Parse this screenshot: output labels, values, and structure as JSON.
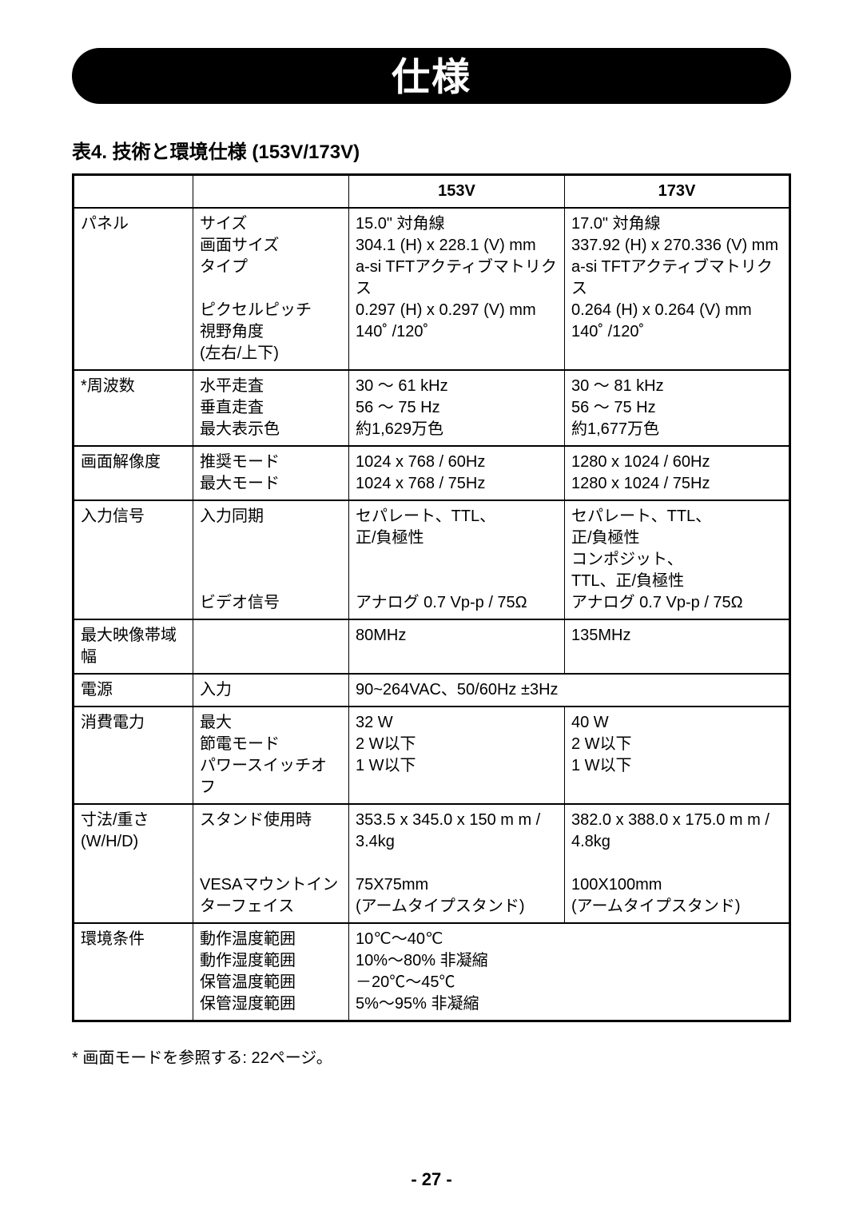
{
  "title": "仕様",
  "caption": "表4. 技術と環境仕様 (153V/173V)",
  "footnote": "* 画面モードを参照する: 22ページ。",
  "page_number": "- 27 -",
  "table": {
    "headers": [
      "",
      "",
      "153V",
      "173V"
    ],
    "rows": [
      {
        "c1": "パネル",
        "c2": "サイズ\n画面サイズ\nタイプ\n\nピクセルピッチ\n視野角度\n(左右/上下)",
        "c3": "15.0\" 対角線\n304.1 (H) x 228.1 (V) mm\na-si TFTアクティブマトリクス\n0.297 (H) x 0.297 (V) mm\n140˚ /120˚",
        "c4": "17.0\" 対角線\n337.92 (H) x 270.336 (V) mm\na-si TFTアクティブマトリクス\n0.264 (H) x 0.264 (V) mm\n140˚ /120˚"
      },
      {
        "c1": "*周波数",
        "c2": "水平走査\n垂直走査\n最大表示色",
        "c3": "30 ～ 61 kHz\n56 ～ 75 Hz\n約1,629万色",
        "c4": "30 ～ 81 kHz\n56 ～ 75 Hz\n約1,677万色"
      },
      {
        "c1": "画面解像度",
        "c2": "推奨モード\n最大モード",
        "c3": "1024 x 768 / 60Hz\n1024 x 768 / 75Hz",
        "c4": "1280 x 1024 / 60Hz\n1280 x 1024 / 75Hz"
      },
      {
        "c1": "入力信号",
        "c2": "入力同期\n\n\n\nビデオ信号",
        "c3": "セパレート、TTL、\n正/負極性\n\n\nアナログ 0.7 Vp-p / 75Ω",
        "c4": "セパレート、TTL、\n正/負極性\nコンポジット、\nTTL、正/負極性\nアナログ 0.7 Vp-p / 75Ω"
      },
      {
        "c1": "最大映像帯域幅",
        "c2": "",
        "c3": "80MHz",
        "c4": "135MHz"
      },
      {
        "c1": "電源",
        "c2": "入力",
        "span": "90~264VAC、50/60Hz ±3Hz"
      },
      {
        "c1": "消費電力",
        "c2": "最大\n節電モード\nパワースイッチオフ",
        "c3": "32 W\n2 W以下\n1 W以下",
        "c4": "40 W\n2 W以下\n1 W以下"
      },
      {
        "c1": "寸法/重さ\n(W/H/D)",
        "c2": "スタンド使用時\n\n\nVESAマウントインターフェイス",
        "c3": "353.5 x 345.0 x 150 m m /\n3.4kg\n\n75X75mm\n(アームタイプスタンド)",
        "c4": "382.0 x 388.0 x 175.0 m m /\n4.8kg\n\n100X100mm\n(アームタイプスタンド)"
      },
      {
        "c1": "環境条件",
        "c2": "動作温度範囲\n動作湿度範囲\n保管温度範囲\n保管湿度範囲",
        "span": "10℃～40℃\n10%～80% 非凝縮\n－20℃～45℃\n5%～95% 非凝縮"
      }
    ]
  }
}
